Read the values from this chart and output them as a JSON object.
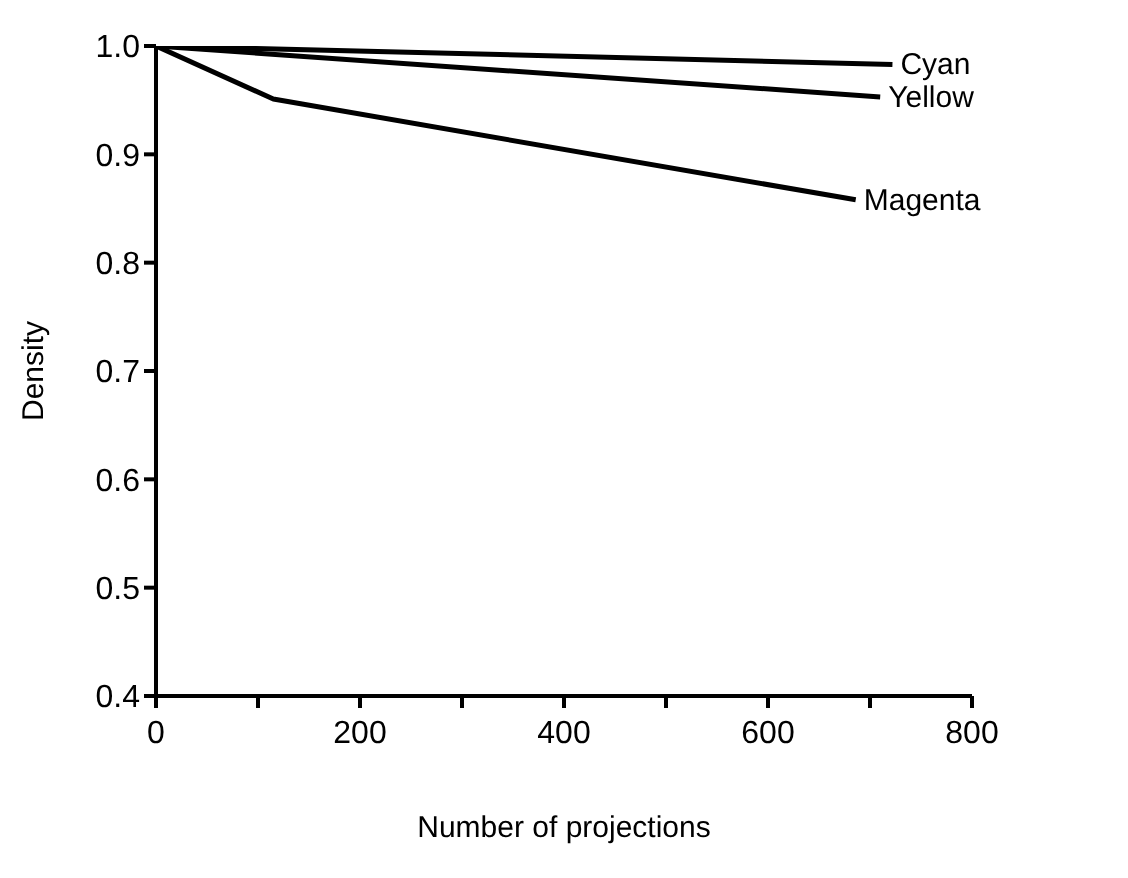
{
  "chart_data": {
    "type": "line",
    "xlabel": "Number of projections",
    "ylabel": "Density",
    "xlim": [
      0,
      800
    ],
    "xticks": [
      0,
      {
        "value": 100,
        "label": null
      },
      200,
      {
        "value": 300,
        "label": null
      },
      400,
      {
        "value": 500,
        "label": null
      },
      600,
      {
        "value": 700,
        "label": null
      },
      800
    ],
    "ylim": [
      0.4,
      1.0
    ],
    "yticks": [
      0.4,
      0.5,
      0.6,
      0.7,
      0.8,
      0.9,
      {
        "value": 1.0,
        "label": "1.0"
      }
    ],
    "grid": false,
    "legend": false,
    "marker": "none",
    "line_style": "solid",
    "series": [
      {
        "name": "Cyan",
        "color": "#000000",
        "x": [
          0,
          722
        ],
        "values": [
          1.0,
          0.983
        ]
      },
      {
        "name": "Yellow",
        "color": "#000000",
        "x": [
          0,
          710
        ],
        "values": [
          1.0,
          0.953
        ]
      },
      {
        "name": "Magenta",
        "color": "#000000",
        "x": [
          0,
          115,
          686
        ],
        "values": [
          1.0,
          0.951,
          0.858
        ]
      }
    ]
  }
}
